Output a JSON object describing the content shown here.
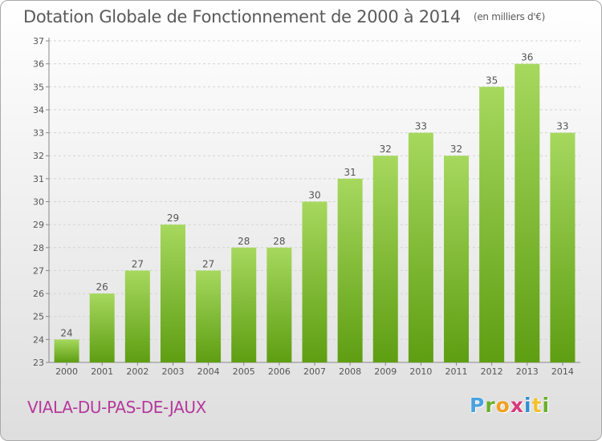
{
  "header": {
    "title": "Dotation Globale de Fonctionnement de 2000 à 2014",
    "subtitle": "(en milliers d'€)"
  },
  "footer": {
    "commune": "VIALA-DU-PAS-DE-JAUX",
    "brand_letters": [
      "P",
      "r",
      "o",
      "x",
      "i",
      "t",
      "i"
    ]
  },
  "colors": {
    "bar_top": "#a6d85e",
    "bar_bottom": "#5e9e12",
    "commune": "#b5399c",
    "text": "#555555"
  },
  "chart_data": {
    "type": "bar",
    "categories": [
      "2000",
      "2001",
      "2002",
      "2003",
      "2004",
      "2005",
      "2006",
      "2007",
      "2008",
      "2009",
      "2010",
      "2011",
      "2012",
      "2013",
      "2014"
    ],
    "values": [
      24,
      26,
      27,
      29,
      27,
      28,
      28,
      30,
      31,
      32,
      33,
      32,
      35,
      36,
      33
    ],
    "title": "Dotation Globale de Fonctionnement de 2000 à 2014",
    "ylim": [
      23,
      37
    ],
    "yticks": [
      23,
      24,
      25,
      26,
      27,
      28,
      29,
      30,
      31,
      32,
      33,
      34,
      35,
      36,
      37
    ],
    "grid": true,
    "data_labels": true
  }
}
